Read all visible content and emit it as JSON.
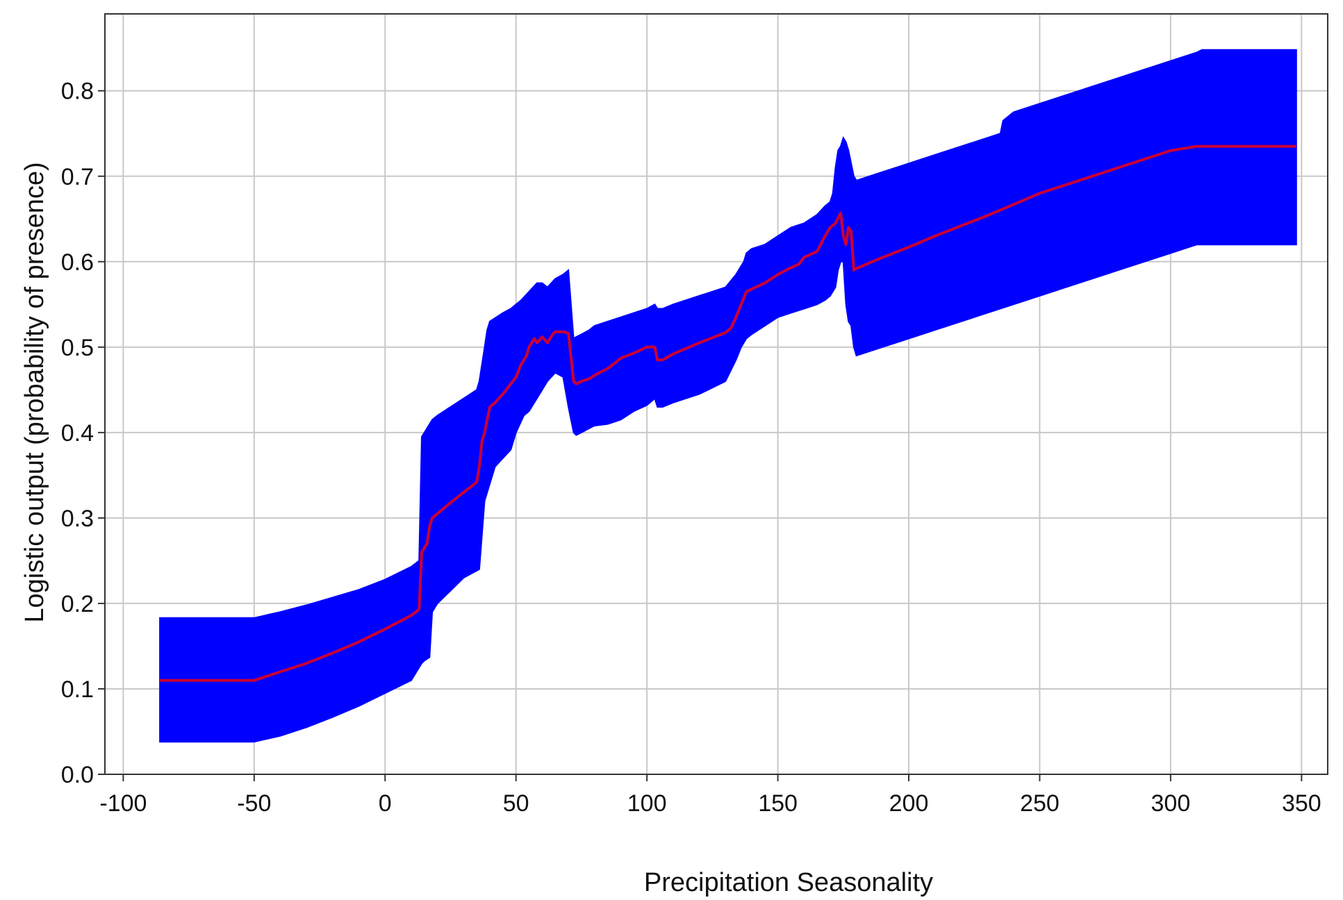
{
  "chart_data": {
    "type": "area",
    "xlabel": "Precipitation Seasonality",
    "ylabel": "Logistic output (probability of presence)",
    "xlim": [
      -107,
      360
    ],
    "ylim": [
      0.0,
      0.89
    ],
    "xticks": [
      -100,
      -50,
      0,
      50,
      100,
      150,
      200,
      250,
      300,
      350
    ],
    "yticks": [
      0.0,
      0.1,
      0.2,
      0.3,
      0.4,
      0.5,
      0.6,
      0.7,
      0.8
    ],
    "xtick_labels": [
      "-100",
      "-50",
      "0",
      "50",
      "100",
      "150",
      "200",
      "250",
      "300",
      "350"
    ],
    "ytick_labels": [
      "0.0",
      "0.1",
      "0.2",
      "0.3",
      "0.4",
      "0.5",
      "0.6",
      "0.7",
      "0.8"
    ],
    "grid": true,
    "colors": {
      "band": "#0000ff",
      "line": "#cc0033",
      "grid": "#c8c8c8",
      "axis": "#333333"
    },
    "series": [
      {
        "role": "mean",
        "x": [
          -86,
          -50,
          -40,
          -30,
          -20,
          -10,
          0,
          10,
          13,
          14,
          16,
          17,
          18,
          20,
          25,
          30,
          35,
          36,
          37,
          38,
          39,
          40,
          42,
          45,
          48,
          50,
          52,
          54,
          55,
          57,
          58,
          60,
          62,
          64,
          65,
          68,
          70,
          72,
          73,
          75,
          78,
          80,
          85,
          88,
          90,
          95,
          100,
          103,
          104,
          106,
          110,
          120,
          130,
          132,
          134,
          136,
          138,
          140,
          145,
          150,
          155,
          158,
          160,
          165,
          168,
          170,
          172,
          174,
          175,
          176,
          177,
          178,
          179,
          180,
          190,
          200,
          210,
          220,
          230,
          237,
          240,
          250,
          260,
          270,
          280,
          290,
          300,
          310,
          312,
          320,
          330,
          340,
          348
        ],
        "y": [
          0.11,
          0.11,
          0.12,
          0.13,
          0.142,
          0.155,
          0.17,
          0.186,
          0.193,
          0.26,
          0.27,
          0.29,
          0.3,
          0.305,
          0.318,
          0.33,
          0.342,
          0.36,
          0.39,
          0.4,
          0.415,
          0.43,
          0.435,
          0.445,
          0.457,
          0.465,
          0.48,
          0.49,
          0.5,
          0.51,
          0.505,
          0.512,
          0.505,
          0.515,
          0.518,
          0.518,
          0.516,
          0.46,
          0.457,
          0.46,
          0.463,
          0.467,
          0.475,
          0.482,
          0.487,
          0.493,
          0.5,
          0.5,
          0.485,
          0.485,
          0.492,
          0.505,
          0.517,
          0.522,
          0.535,
          0.55,
          0.565,
          0.568,
          0.575,
          0.585,
          0.593,
          0.597,
          0.605,
          0.612,
          0.63,
          0.64,
          0.645,
          0.657,
          0.63,
          0.62,
          0.64,
          0.635,
          0.59,
          0.592,
          0.605,
          0.617,
          0.63,
          0.642,
          0.654,
          0.663,
          0.667,
          0.68,
          0.69,
          0.7,
          0.71,
          0.72,
          0.73,
          0.735,
          0.735,
          0.735,
          0.735,
          0.735,
          0.735
        ]
      },
      {
        "role": "upper",
        "x": [
          -86,
          -50,
          -40,
          -30,
          -20,
          -10,
          0,
          10,
          13,
          14,
          17,
          18,
          20,
          25,
          30,
          35,
          36,
          37,
          38,
          39,
          40,
          45,
          48,
          50,
          52,
          55,
          58,
          60,
          62,
          65,
          68,
          70,
          72,
          73,
          75,
          78,
          80,
          85,
          90,
          95,
          100,
          103,
          104,
          106,
          110,
          120,
          130,
          134,
          136,
          137,
          138,
          140,
          145,
          150,
          155,
          160,
          165,
          168,
          170,
          171,
          172,
          173,
          174,
          175,
          176,
          177,
          178,
          179,
          180,
          190,
          200,
          210,
          220,
          230,
          235,
          236,
          240,
          250,
          260,
          270,
          280,
          290,
          300,
          310,
          312,
          320,
          330,
          340,
          348
        ],
        "y": [
          0.183,
          0.183,
          0.19,
          0.198,
          0.207,
          0.216,
          0.228,
          0.243,
          0.25,
          0.395,
          0.41,
          0.415,
          0.42,
          0.43,
          0.44,
          0.45,
          0.46,
          0.48,
          0.5,
          0.52,
          0.53,
          0.54,
          0.545,
          0.55,
          0.555,
          0.565,
          0.575,
          0.575,
          0.57,
          0.58,
          0.585,
          0.59,
          0.51,
          0.512,
          0.515,
          0.52,
          0.525,
          0.53,
          0.535,
          0.54,
          0.545,
          0.55,
          0.545,
          0.545,
          0.55,
          0.56,
          0.57,
          0.585,
          0.595,
          0.6,
          0.61,
          0.615,
          0.62,
          0.63,
          0.64,
          0.645,
          0.655,
          0.665,
          0.67,
          0.68,
          0.71,
          0.73,
          0.735,
          0.745,
          0.74,
          0.73,
          0.715,
          0.7,
          0.695,
          0.705,
          0.715,
          0.725,
          0.735,
          0.745,
          0.75,
          0.765,
          0.775,
          0.785,
          0.795,
          0.805,
          0.815,
          0.825,
          0.835,
          0.845,
          0.848,
          0.848,
          0.848,
          0.848,
          0.848
        ]
      },
      {
        "role": "lower",
        "x": [
          -86,
          -50,
          -40,
          -30,
          -20,
          -10,
          0,
          10,
          14,
          15,
          16,
          17,
          18,
          20,
          25,
          30,
          36,
          37,
          38,
          40,
          42,
          45,
          48,
          50,
          53,
          55,
          58,
          60,
          62,
          65,
          68,
          70,
          72,
          73,
          75,
          78,
          80,
          85,
          90,
          95,
          100,
          103,
          104,
          106,
          110,
          120,
          130,
          134,
          136,
          138,
          140,
          145,
          150,
          155,
          160,
          165,
          168,
          170,
          172,
          173,
          174,
          175,
          176,
          177,
          178,
          179,
          180,
          190,
          200,
          210,
          220,
          230,
          240,
          250,
          260,
          270,
          280,
          290,
          300,
          310,
          312,
          320,
          330,
          340,
          348
        ],
        "y": [
          0.038,
          0.038,
          0.045,
          0.055,
          0.067,
          0.08,
          0.095,
          0.11,
          0.13,
          0.133,
          0.135,
          0.137,
          0.19,
          0.2,
          0.215,
          0.23,
          0.24,
          0.28,
          0.32,
          0.34,
          0.36,
          0.37,
          0.38,
          0.4,
          0.42,
          0.425,
          0.44,
          0.45,
          0.46,
          0.47,
          0.465,
          0.43,
          0.4,
          0.397,
          0.4,
          0.405,
          0.408,
          0.41,
          0.415,
          0.425,
          0.432,
          0.44,
          0.43,
          0.43,
          0.435,
          0.445,
          0.46,
          0.485,
          0.5,
          0.51,
          0.515,
          0.525,
          0.535,
          0.54,
          0.545,
          0.55,
          0.555,
          0.56,
          0.57,
          0.59,
          0.6,
          0.6,
          0.55,
          0.53,
          0.525,
          0.5,
          0.49,
          0.5,
          0.51,
          0.52,
          0.53,
          0.54,
          0.55,
          0.56,
          0.57,
          0.58,
          0.59,
          0.6,
          0.61,
          0.62,
          0.62,
          0.62,
          0.62,
          0.62,
          0.62
        ]
      }
    ]
  }
}
